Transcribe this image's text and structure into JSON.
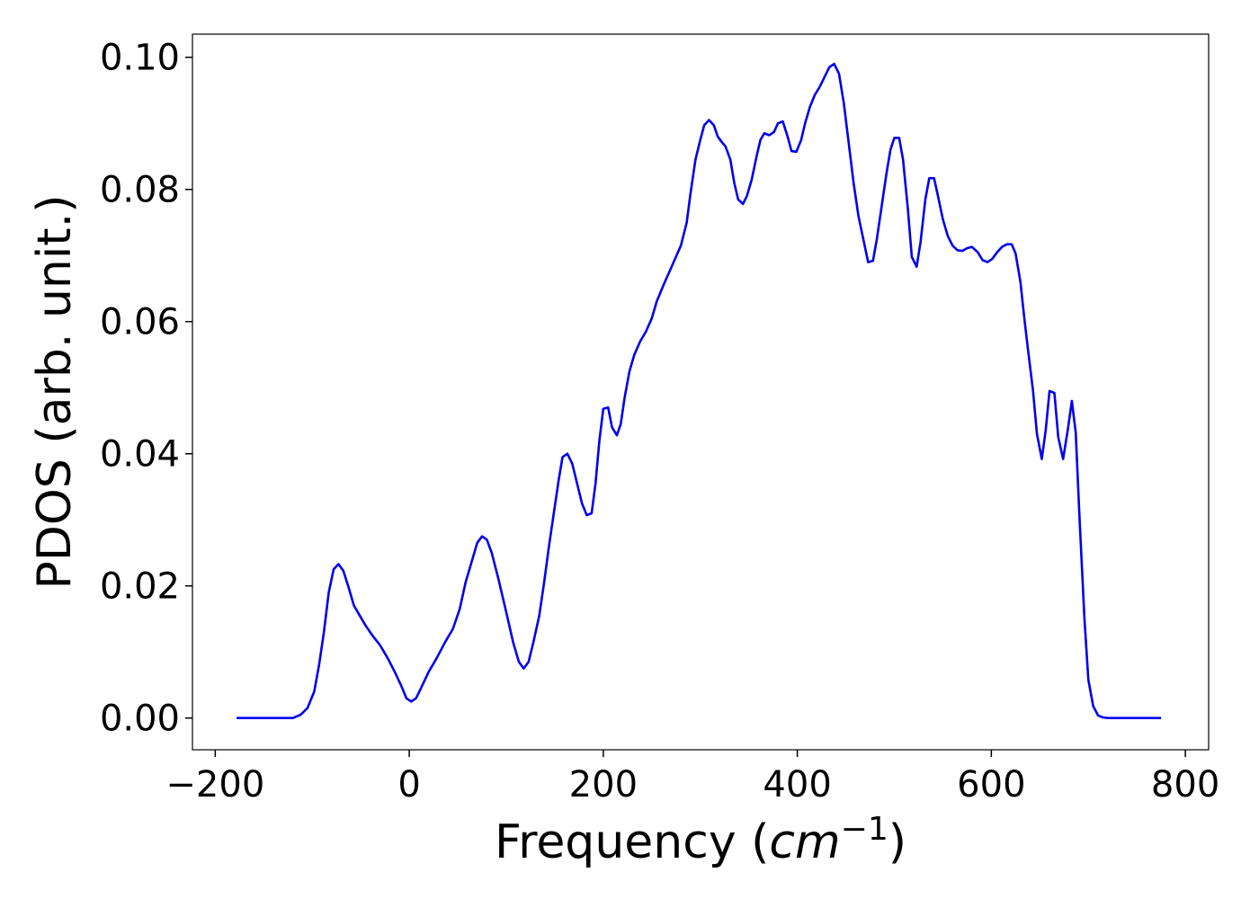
{
  "chart_data": {
    "type": "line",
    "xlabel": "Frequency (cm−1)",
    "ylabel": "PDOS (arb. unit.)",
    "xlim": [
      -223.5,
      824
    ],
    "ylim": [
      -0.0048,
      0.1035
    ],
    "xticks": [
      {
        "value": -200,
        "label": "−200"
      },
      0,
      200,
      400,
      600,
      800
    ],
    "yticks": [
      {
        "value": 0,
        "label": "0.00"
      },
      {
        "value": 0.02,
        "label": "0.02"
      },
      {
        "value": 0.04,
        "label": "0.04"
      },
      {
        "value": 0.06,
        "label": "0.06"
      },
      {
        "value": 0.08,
        "label": "0.08"
      },
      {
        "value": 0.1,
        "label": "0.10"
      }
    ],
    "grid": false,
    "x": [
      -178,
      -120,
      -112,
      -105,
      -98,
      -93,
      -88,
      -83,
      -78,
      -73,
      -68,
      -63,
      -57,
      -51,
      -45,
      -38,
      -30,
      -22,
      -15,
      -8,
      -3,
      2,
      7,
      12,
      20,
      28,
      37,
      45,
      52,
      58,
      65,
      70,
      75,
      80,
      85,
      92,
      100,
      107,
      113,
      118,
      123,
      128,
      134,
      139,
      144,
      149,
      154,
      158,
      163,
      168,
      173,
      178,
      183,
      188,
      192,
      196,
      200,
      205,
      209,
      214,
      218,
      222,
      227,
      232,
      238,
      244,
      250,
      255,
      262,
      268,
      274,
      280,
      286,
      290,
      295,
      300,
      304,
      309,
      314,
      318,
      322,
      326,
      331,
      335,
      339,
      344,
      348,
      353,
      358,
      362,
      366,
      371,
      376,
      380,
      385,
      390,
      394,
      399,
      404,
      408,
      413,
      418,
      423,
      428,
      433,
      438,
      443,
      448,
      453,
      458,
      463,
      468,
      473,
      478,
      482,
      487,
      492,
      496,
      500,
      505,
      509,
      514,
      518,
      523,
      527,
      532,
      536,
      541,
      545,
      550,
      555,
      560,
      565,
      570,
      575,
      580,
      586,
      591,
      596,
      601,
      606,
      611,
      616,
      621,
      625,
      630,
      634,
      638,
      643,
      647,
      652,
      656,
      660,
      665,
      669,
      674,
      679,
      683,
      687,
      691,
      696,
      700,
      705,
      710,
      715,
      720,
      775
    ],
    "series": [
      {
        "name": "PDOS",
        "color": "#0000ee",
        "values": [
          0,
          0,
          0.0005,
          0.0015,
          0.004,
          0.008,
          0.013,
          0.019,
          0.0225,
          0.0233,
          0.0223,
          0.02,
          0.017,
          0.0155,
          0.014,
          0.0125,
          0.011,
          0.009,
          0.007,
          0.0048,
          0.003,
          0.0025,
          0.003,
          0.0045,
          0.007,
          0.009,
          0.0115,
          0.0135,
          0.0165,
          0.0205,
          0.024,
          0.0265,
          0.0275,
          0.027,
          0.025,
          0.021,
          0.016,
          0.0115,
          0.0085,
          0.0075,
          0.0085,
          0.0115,
          0.0155,
          0.0205,
          0.026,
          0.031,
          0.036,
          0.0395,
          0.04,
          0.0385,
          0.0355,
          0.0325,
          0.0307,
          0.031,
          0.0355,
          0.042,
          0.0468,
          0.047,
          0.044,
          0.0428,
          0.0445,
          0.0485,
          0.0525,
          0.055,
          0.057,
          0.0585,
          0.0605,
          0.063,
          0.0655,
          0.0675,
          0.0695,
          0.0715,
          0.075,
          0.0795,
          0.0845,
          0.0875,
          0.0897,
          0.0905,
          0.0897,
          0.088,
          0.0872,
          0.0865,
          0.0845,
          0.081,
          0.0785,
          0.0778,
          0.079,
          0.0815,
          0.085,
          0.0875,
          0.0885,
          0.0882,
          0.0887,
          0.09,
          0.0903,
          0.088,
          0.0858,
          0.0857,
          0.0875,
          0.09,
          0.0925,
          0.0943,
          0.0955,
          0.097,
          0.0985,
          0.099,
          0.0975,
          0.093,
          0.087,
          0.081,
          0.076,
          0.0725,
          0.069,
          0.0692,
          0.0725,
          0.0775,
          0.0825,
          0.086,
          0.0878,
          0.0878,
          0.0845,
          0.077,
          0.0698,
          0.0683,
          0.072,
          0.0785,
          0.0817,
          0.0817,
          0.079,
          0.0755,
          0.073,
          0.0715,
          0.0708,
          0.0707,
          0.0711,
          0.0713,
          0.0705,
          0.0693,
          0.069,
          0.0695,
          0.0705,
          0.0713,
          0.0717,
          0.0717,
          0.0703,
          0.066,
          0.0605,
          0.0555,
          0.0495,
          0.043,
          0.0392,
          0.0435,
          0.0495,
          0.0492,
          0.0425,
          0.0392,
          0.0438,
          0.048,
          0.0432,
          0.03,
          0.015,
          0.0058,
          0.0018,
          0.0004,
          0.0001,
          0,
          0
        ]
      }
    ]
  }
}
